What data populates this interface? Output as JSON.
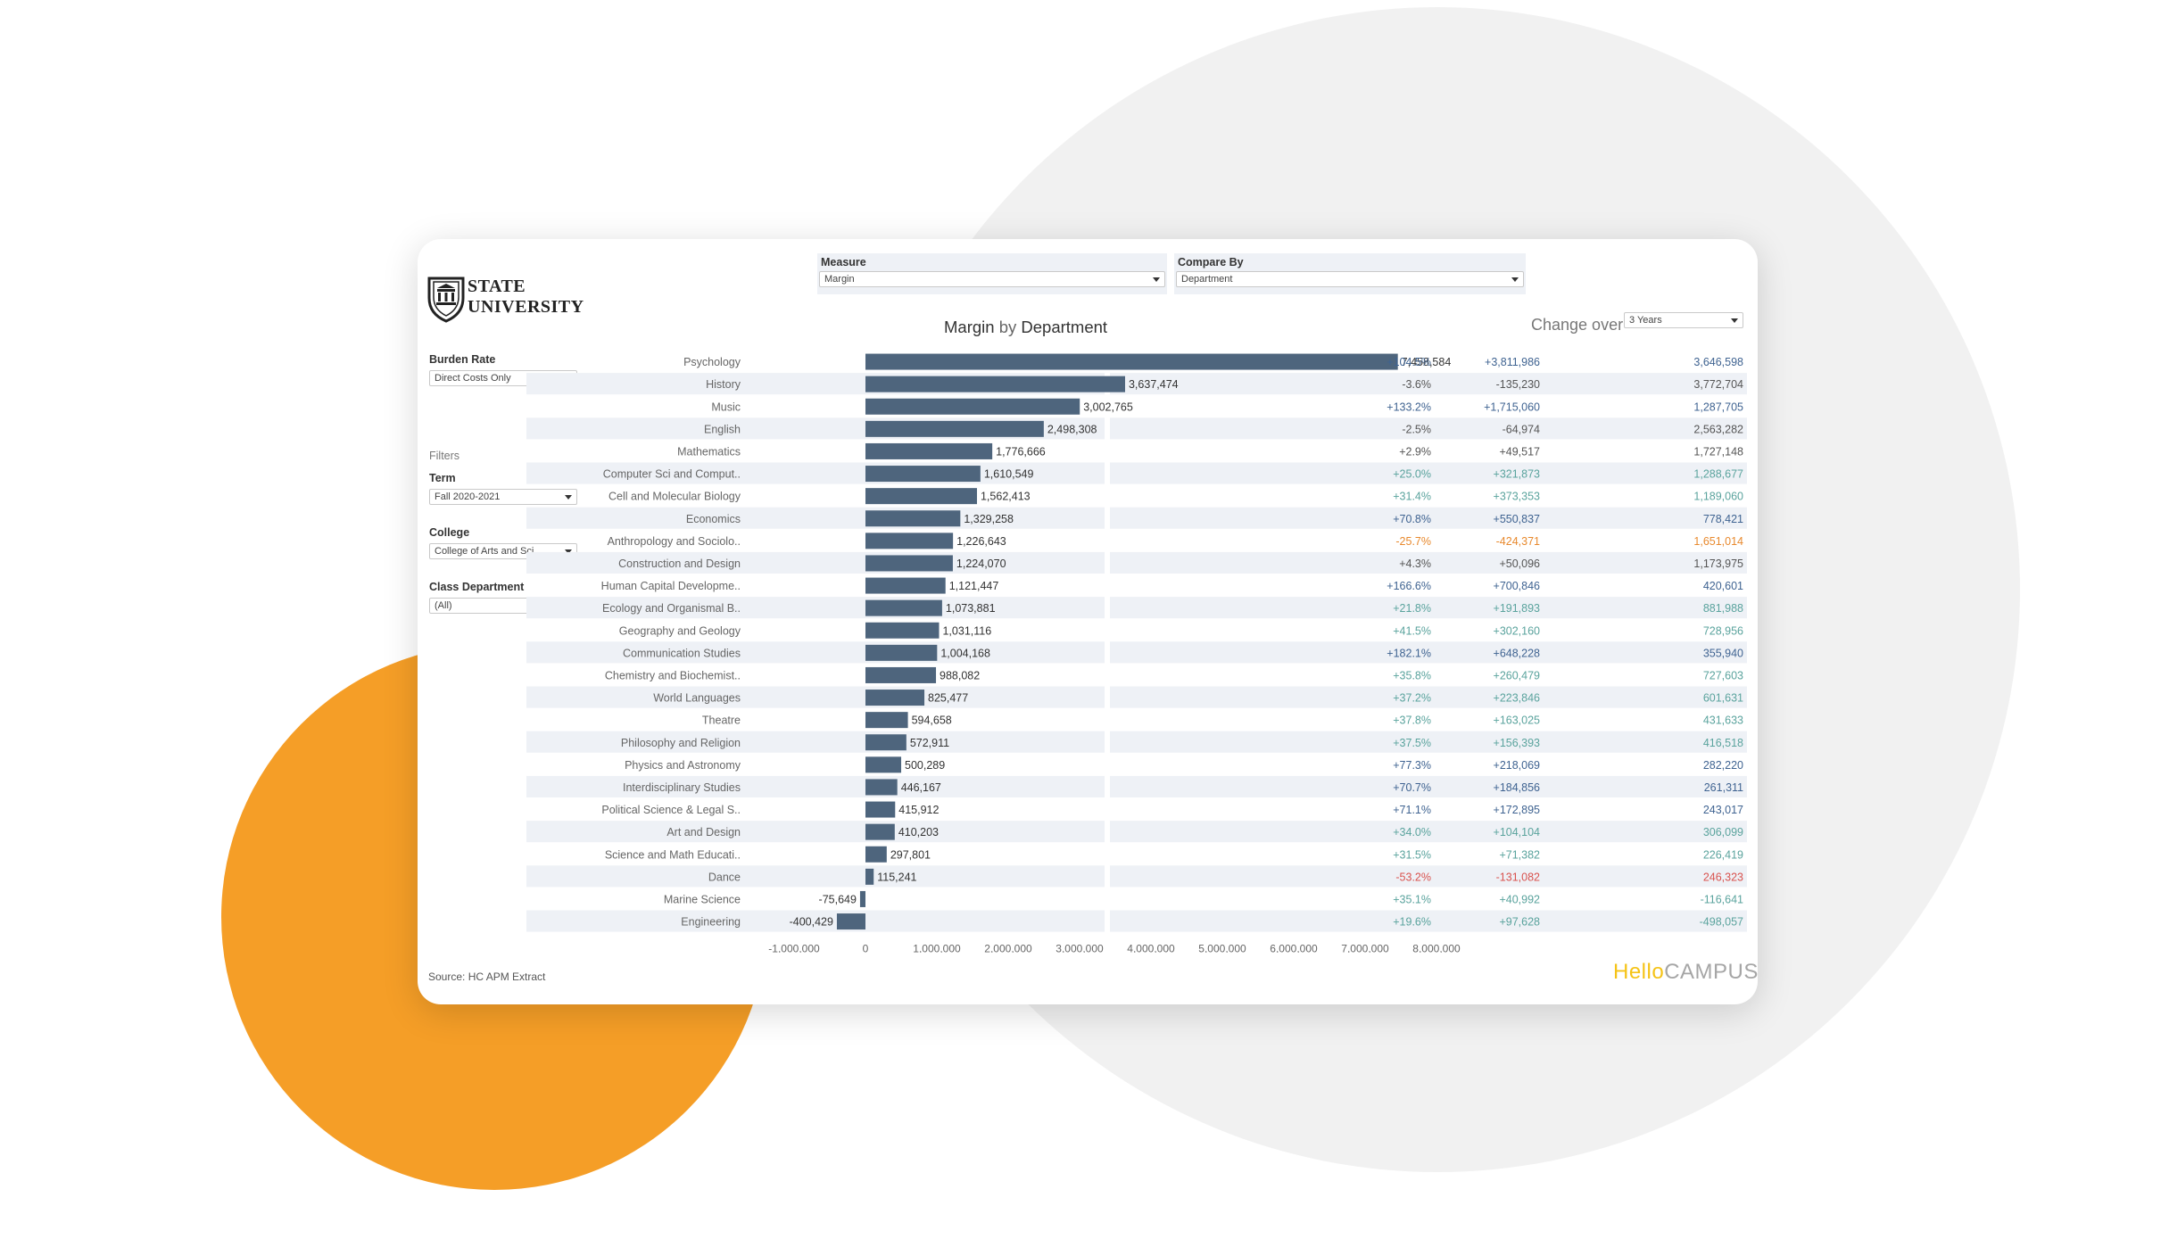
{
  "header": {
    "logo_lines": [
      "STATE",
      "UNIVERSITY"
    ],
    "measure": {
      "label": "Measure",
      "value": "Margin"
    },
    "compare_by": {
      "label": "Compare By",
      "value": "Department"
    }
  },
  "sidebar": {
    "burden_rate": {
      "label": "Burden Rate",
      "value": "Direct Costs Only"
    },
    "filters_label": "Filters",
    "term": {
      "label": "Term",
      "value": "Fall 2020-2021"
    },
    "college": {
      "label": "College",
      "value": "College of Arts and Sci..."
    },
    "class_department": {
      "label": "Class Department",
      "value": "(All)"
    }
  },
  "chart": {
    "title_main": "Margin",
    "title_by": "by",
    "title_dim": "Department"
  },
  "change": {
    "title": "Change over",
    "period": "3 Years"
  },
  "footer": {
    "source": "Source: HC APM Extract",
    "brand_hello": "Hello",
    "brand_campus": "CAMPUS"
  },
  "colors": {
    "bar": "#4e657d",
    "row_band": "#eef1f6",
    "pos_dark": "#3f6391",
    "pos_teal": "#5aa39d",
    "neutral": "#555555",
    "orange": "#e8892d",
    "red": "#d9534f",
    "brand_yellow": "#f5c316",
    "orange_circle": "#f59e27"
  },
  "chart_data": {
    "type": "bar",
    "orientation": "horizontal",
    "categories": [
      "Psychology",
      "History",
      "Music",
      "English",
      "Mathematics",
      "Computer Sci and Comput..",
      "Cell and Molecular Biology",
      "Economics",
      "Anthropology and Sociolo..",
      "Construction and Design",
      "Human Capital Developme..",
      "Ecology and Organismal B..",
      "Geography and Geology",
      "Communication Studies",
      "Chemistry and Biochemist..",
      "World Languages",
      "Theatre",
      "Philosophy and Religion",
      "Physics and Astronomy",
      "Interdisciplinary Studies",
      "Political Science & Legal S..",
      "Art and Design",
      "Science and Math Educati..",
      "Dance",
      "Marine Science",
      "Engineering"
    ],
    "values": [
      7458584,
      3637474,
      3002765,
      2498308,
      1776666,
      1610549,
      1562413,
      1329258,
      1226643,
      1224070,
      1121447,
      1073881,
      1031116,
      1004168,
      988082,
      825477,
      594658,
      572911,
      500289,
      446167,
      415912,
      410203,
      297801,
      115241,
      -75649,
      -400429
    ],
    "value_labels": [
      "7,458,584",
      "3,637,474",
      "3,002,765",
      "2,498,308",
      "1,776,666",
      "1,610,549",
      "1,562,413",
      "1,329,258",
      "1,226,643",
      "1,224,070",
      "1,121,447",
      "1,073,881",
      "1,031,116",
      "1,004,168",
      "988,082",
      "825,477",
      "594,658",
      "572,911",
      "500,289",
      "446,167",
      "415,912",
      "410,203",
      "297,801",
      "115,241",
      "-75,649",
      "-400,429"
    ],
    "x_ticks": [
      "-1,000,000",
      "0",
      "1,000,000",
      "2,000,000",
      "3,000,000",
      "4,000,000",
      "5,000,000",
      "6,000,000",
      "7,000,000",
      "8,000,000"
    ],
    "xlim": [
      -1000000,
      8500000
    ],
    "title": "Margin by Department",
    "change_table": [
      {
        "pct": "+104.5%",
        "abs": "+3,811,986",
        "base": "3,646,598",
        "color": "dark"
      },
      {
        "pct": "-3.6%",
        "abs": "-135,230",
        "base": "3,772,704",
        "color": "neutral"
      },
      {
        "pct": "+133.2%",
        "abs": "+1,715,060",
        "base": "1,287,705",
        "color": "dark"
      },
      {
        "pct": "-2.5%",
        "abs": "-64,974",
        "base": "2,563,282",
        "color": "neutral"
      },
      {
        "pct": "+2.9%",
        "abs": "+49,517",
        "base": "1,727,148",
        "color": "neutral"
      },
      {
        "pct": "+25.0%",
        "abs": "+321,873",
        "base": "1,288,677",
        "color": "teal"
      },
      {
        "pct": "+31.4%",
        "abs": "+373,353",
        "base": "1,189,060",
        "color": "teal"
      },
      {
        "pct": "+70.8%",
        "abs": "+550,837",
        "base": "778,421",
        "color": "dark"
      },
      {
        "pct": "-25.7%",
        "abs": "-424,371",
        "base": "1,651,014",
        "color": "orange"
      },
      {
        "pct": "+4.3%",
        "abs": "+50,096",
        "base": "1,173,975",
        "color": "neutral"
      },
      {
        "pct": "+166.6%",
        "abs": "+700,846",
        "base": "420,601",
        "color": "dark"
      },
      {
        "pct": "+21.8%",
        "abs": "+191,893",
        "base": "881,988",
        "color": "teal"
      },
      {
        "pct": "+41.5%",
        "abs": "+302,160",
        "base": "728,956",
        "color": "teal"
      },
      {
        "pct": "+182.1%",
        "abs": "+648,228",
        "base": "355,940",
        "color": "dark"
      },
      {
        "pct": "+35.8%",
        "abs": "+260,479",
        "base": "727,603",
        "color": "teal"
      },
      {
        "pct": "+37.2%",
        "abs": "+223,846",
        "base": "601,631",
        "color": "teal"
      },
      {
        "pct": "+37.8%",
        "abs": "+163,025",
        "base": "431,633",
        "color": "teal"
      },
      {
        "pct": "+37.5%",
        "abs": "+156,393",
        "base": "416,518",
        "color": "teal"
      },
      {
        "pct": "+77.3%",
        "abs": "+218,069",
        "base": "282,220",
        "color": "dark"
      },
      {
        "pct": "+70.7%",
        "abs": "+184,856",
        "base": "261,311",
        "color": "dark"
      },
      {
        "pct": "+71.1%",
        "abs": "+172,895",
        "base": "243,017",
        "color": "dark"
      },
      {
        "pct": "+34.0%",
        "abs": "+104,104",
        "base": "306,099",
        "color": "teal"
      },
      {
        "pct": "+31.5%",
        "abs": "+71,382",
        "base": "226,419",
        "color": "teal"
      },
      {
        "pct": "-53.2%",
        "abs": "-131,082",
        "base": "246,323",
        "color": "red"
      },
      {
        "pct": "+35.1%",
        "abs": "+40,992",
        "base": "-116,641",
        "color": "teal"
      },
      {
        "pct": "+19.6%",
        "abs": "+97,628",
        "base": "-498,057",
        "color": "teal"
      }
    ]
  }
}
